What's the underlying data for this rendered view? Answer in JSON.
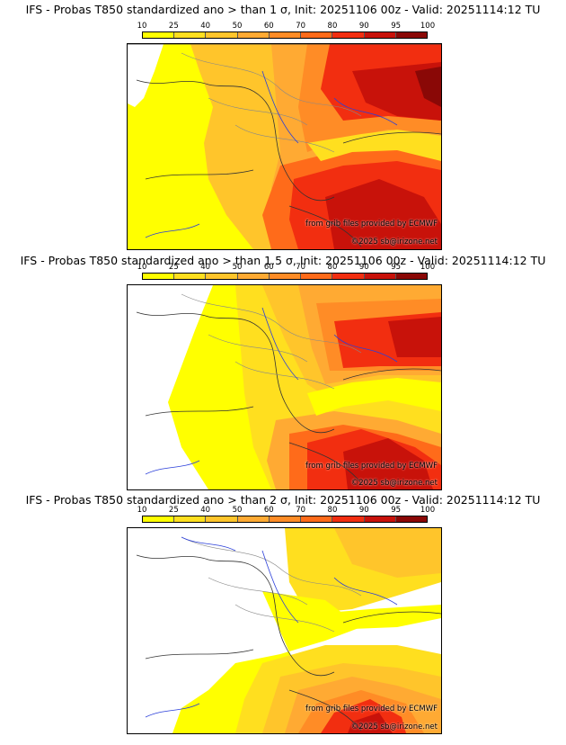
{
  "colorbar": {
    "ticks": [
      "10",
      "25",
      "40",
      "50",
      "60",
      "70",
      "80",
      "90",
      "95",
      "100"
    ],
    "colors": [
      "#ffff00",
      "#ffdf1f",
      "#ffc52b",
      "#ffaa33",
      "#ff8c26",
      "#ff6b1a",
      "#f22e10",
      "#c8120a",
      "#8a0806"
    ]
  },
  "panels": [
    {
      "title": "IFS - Probas T850  standardized ano > than 1 σ, Init: 20251106 00z - Valid: 20251114:12 TU",
      "credit_line1": "from grib files provided by ECMWF",
      "credit_line2": "©2025 sb@irizone.net"
    },
    {
      "title": "IFS - Probas T850  standardized ano > than 1.5 σ, Init: 20251106 00z - Valid: 20251114:12 TU",
      "credit_line1": "from grib files provided by ECMWF",
      "credit_line2": "©2025 sb@irizone.net"
    },
    {
      "title": "IFS - Probas T850  standardized ano > than 2 σ, Init: 20251106 00z - Valid: 20251114:12 TU",
      "credit_line1": "from grib files provided by ECMWF",
      "credit_line2": "©2025 sb@irizone.net"
    }
  ]
}
